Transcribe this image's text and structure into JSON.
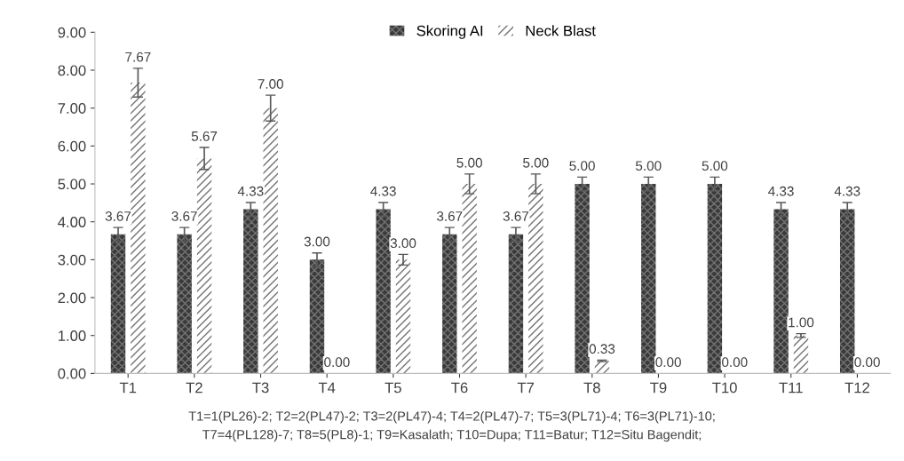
{
  "chart_data": {
    "type": "bar",
    "categories": [
      "T1",
      "T2",
      "T3",
      "T4",
      "T5",
      "T6",
      "T7",
      "T8",
      "T9",
      "T10",
      "T11",
      "T12"
    ],
    "series": [
      {
        "name": "Skoring AI",
        "color": "#3a3a3a",
        "values": [
          3.67,
          3.67,
          4.33,
          3.0,
          4.33,
          3.67,
          3.67,
          5.0,
          5.0,
          5.0,
          4.33,
          4.33
        ],
        "errors": [
          0.18,
          0.18,
          0.18,
          0.18,
          0.18,
          0.18,
          0.18,
          0.18,
          0.18,
          0.18,
          0.18,
          0.18
        ],
        "value_labels": [
          "3.67",
          "3.67",
          "4.33",
          "3.00",
          "4.33",
          "3.67",
          "3.67",
          "5.00",
          "5.00",
          "5.00",
          "4.33",
          "4.33"
        ]
      },
      {
        "name": "Neck Blast",
        "color": "#ffffff",
        "values": [
          7.67,
          5.67,
          7.0,
          0.0,
          3.0,
          5.0,
          5.0,
          0.33,
          0.0,
          0.0,
          1.0,
          0.0
        ],
        "errors": [
          0.38,
          0.29,
          0.34,
          null,
          0.14,
          0.26,
          0.26,
          0.02,
          null,
          null,
          0.05,
          null
        ],
        "value_labels": [
          "7.67",
          "5.67",
          "7.00",
          "0.00",
          "3.00",
          "5.00",
          "5.00",
          "0.33",
          "0.00",
          "0.00",
          "1.00",
          "0.00"
        ]
      }
    ],
    "ylim": [
      0,
      9
    ],
    "yticks": [
      {
        "value": 0,
        "label": "0.00"
      },
      {
        "value": 1,
        "label": "1.00"
      },
      {
        "value": 2,
        "label": "2.00"
      },
      {
        "value": 3,
        "label": "3.00"
      },
      {
        "value": 4,
        "label": "4.00"
      },
      {
        "value": 5,
        "label": "5.00"
      },
      {
        "value": 6,
        "label": "6.00"
      },
      {
        "value": 7,
        "label": "7.00"
      },
      {
        "value": 8,
        "label": "8.00"
      },
      {
        "value": 9,
        "label": "9.00"
      }
    ],
    "grid": false,
    "legend": "top",
    "annotations": [
      "T1=1(PL26)-2; T2=2(PL47)-2; T3=2(PL47)-4; T4=2(PL47)-7; T5=3(PL71)-4; T6=3(PL71)-10;",
      "T7=4(PL128)-7; T8=5(PL8)-1; T9=Kasalath; T10=Dupa; T11=Batur; T12=Situ Bagendit;"
    ]
  }
}
